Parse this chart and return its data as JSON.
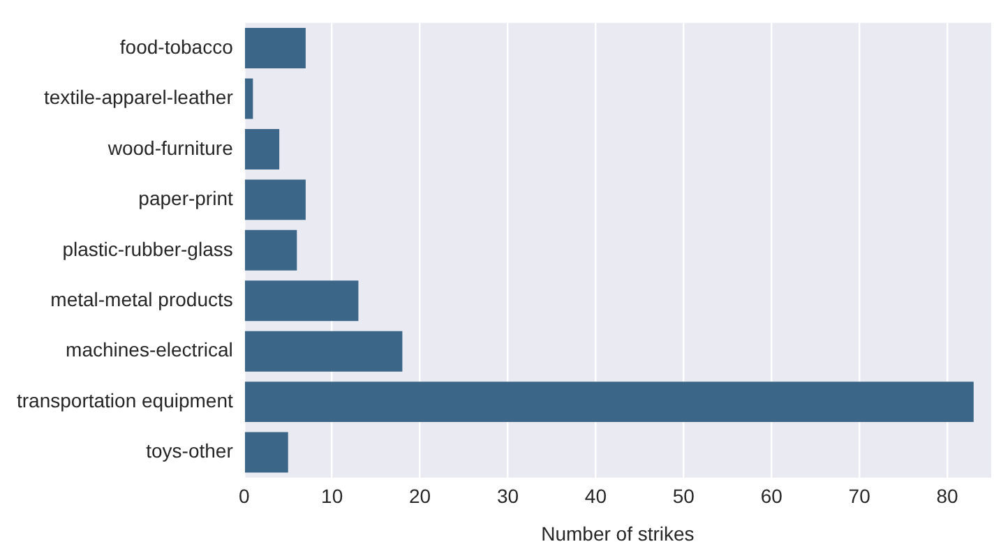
{
  "chart_data": {
    "type": "bar",
    "orientation": "horizontal",
    "xlabel": "Number of strikes",
    "categories": [
      "food-tobacco",
      "textile-apparel-leather",
      "wood-furniture",
      "paper-print",
      "plastic-rubber-glass",
      "metal-metal products",
      "machines-electrical",
      "transportation equipment",
      "toys-other"
    ],
    "values": [
      7,
      1,
      4,
      7,
      6,
      13,
      18,
      83,
      5
    ],
    "color": "#3b6687",
    "xlim": [
      0,
      85
    ],
    "xticks": [
      0,
      10,
      20,
      30,
      40,
      50,
      60,
      70,
      80
    ],
    "grid": "x"
  }
}
